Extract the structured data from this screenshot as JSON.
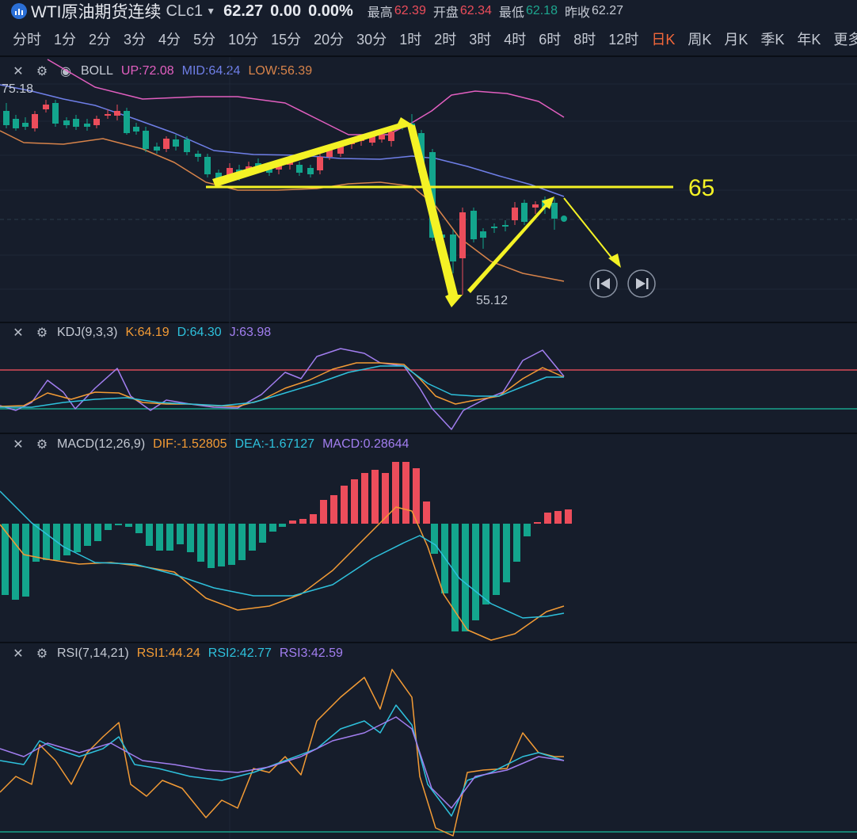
{
  "header": {
    "symbol": "WTI原油期货连续",
    "code": "CLc1",
    "price": "62.27",
    "change": "0.00",
    "change_pct": "0.00%",
    "high_label": "最高",
    "high": "62.39",
    "open_label": "开盘",
    "open": "62.34",
    "low_label": "最低",
    "low": "62.18",
    "prev_label": "昨收",
    "prev": "62.27"
  },
  "intervals": [
    "分时",
    "1分",
    "2分",
    "3分",
    "4分",
    "5分",
    "10分",
    "15分",
    "20分",
    "30分",
    "1时",
    "2时",
    "3时",
    "4时",
    "6时",
    "8时",
    "12时",
    "日K",
    "周K",
    "月K",
    "季K",
    "年K",
    "更多"
  ],
  "active_interval": "日K",
  "boll": {
    "name": "BOLL",
    "up": "UP:72.08",
    "mid": "MID:64.24",
    "low": "LOW:56.39"
  },
  "kdj": {
    "name": "KDJ(9,3,3)",
    "k": "K:64.19",
    "d": "D:64.30",
    "j": "J:63.98"
  },
  "macd": {
    "name": "MACD(12,26,9)",
    "dif": "DIF:-1.52805",
    "dea": "DEA:-1.67127",
    "macd": "MACD:0.28644"
  },
  "rsi": {
    "name": "RSI(7,14,21)",
    "rsi1": "RSI1:44.24",
    "rsi2": "RSI2:42.77",
    "rsi3": "RSI3:42.59"
  },
  "main_chart": {
    "max_label": "75.18",
    "min_label": "55.12",
    "annotation": "65"
  },
  "colors": {
    "up": "#ec4d5b",
    "down": "#13a58d",
    "background": "#161d2b",
    "annotation": "#f4f225"
  },
  "icons": [
    "close-icon",
    "settings-icon",
    "visibility-icon",
    "prev-icon",
    "next-icon"
  ]
}
